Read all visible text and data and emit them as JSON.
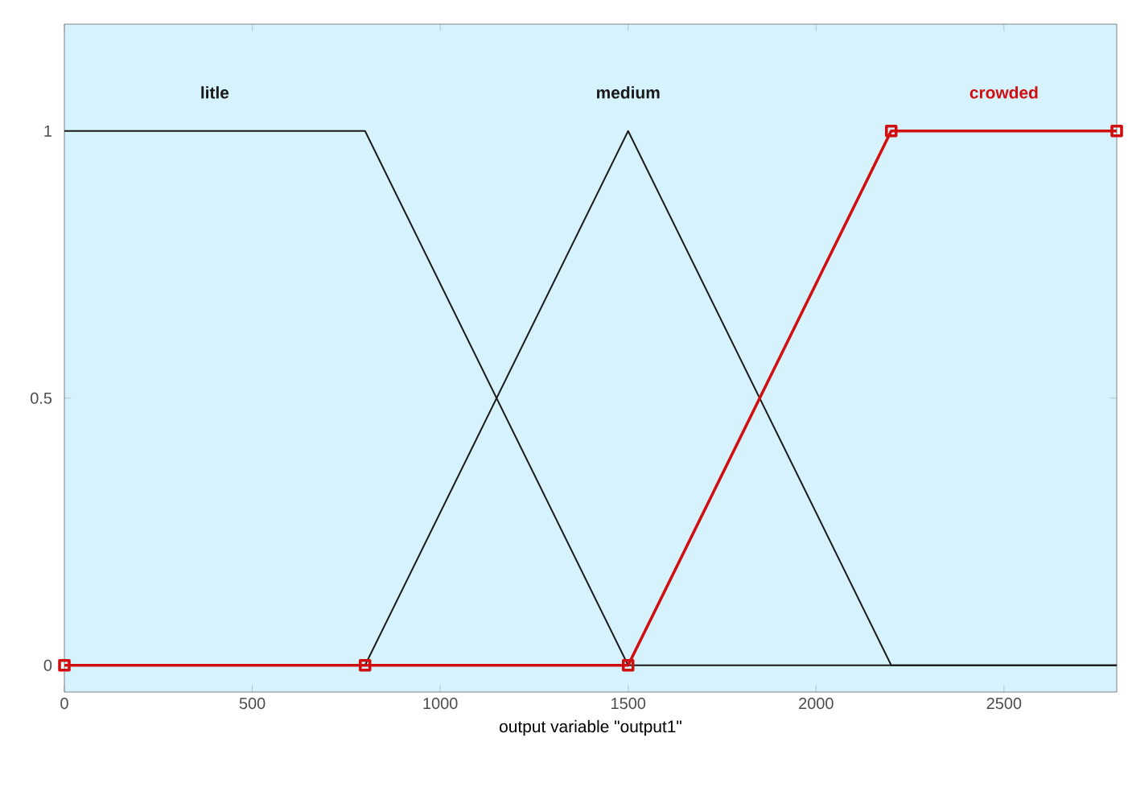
{
  "chart_data": {
    "type": "line",
    "xlabel": "output variable \"output1\"",
    "x": [
      0,
      800,
      1500,
      2200,
      2800
    ],
    "series": [
      {
        "name": "litle",
        "color": "#1a1a1a",
        "values": [
          1,
          1,
          0,
          0,
          0
        ]
      },
      {
        "name": "medium",
        "color": "#1a1a1a",
        "values": [
          0,
          0,
          1,
          0,
          0
        ]
      },
      {
        "name": "crowded",
        "color": "#d01010",
        "values": [
          0,
          0,
          0,
          1,
          1
        ],
        "marker": "square"
      }
    ],
    "xlim": [
      0,
      2800
    ],
    "ylim": [
      -0.05,
      1.2
    ],
    "xticks": [
      0,
      500,
      1000,
      1500,
      2000,
      2500
    ],
    "yticks": [
      0,
      {
        "value": 0.5,
        "label": "0.5"
      },
      1
    ]
  }
}
